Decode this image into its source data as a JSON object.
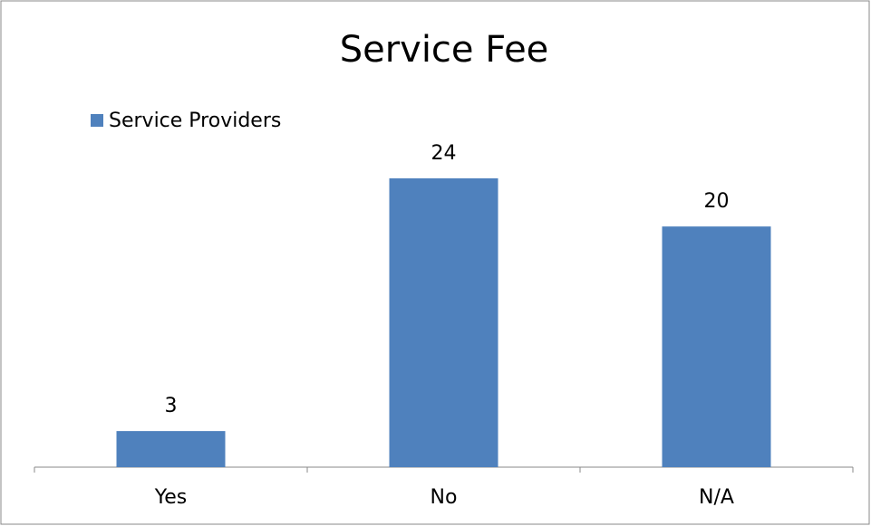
{
  "chart_data": {
    "type": "bar",
    "title": "Service Fee",
    "categories": [
      "Yes",
      "No",
      "N/A"
    ],
    "series": [
      {
        "name": "Service Providers",
        "color": "#4f81bd",
        "values": [
          3,
          24,
          20
        ]
      }
    ]
  }
}
